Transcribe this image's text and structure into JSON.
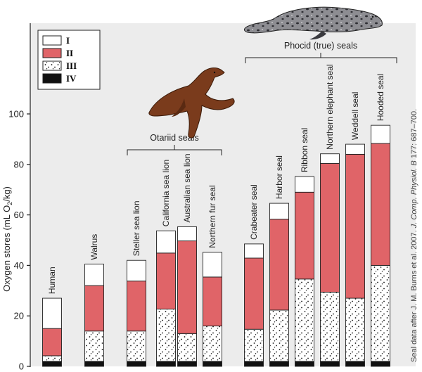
{
  "chart_data": {
    "type": "bar",
    "stacked": true,
    "categories": [
      "Human",
      "Walrus",
      "Steller sea lion",
      "California sea lion",
      "Australian sea lion",
      "Northern fur seal",
      "Crabeater seal",
      "Harbor seal",
      "Ribbon seal",
      "Northern elephant seal",
      "Weddell seal",
      "Hooded seal"
    ],
    "series": [
      {
        "name": "IV",
        "color": "#111111",
        "pattern": "solid",
        "values": [
          2,
          2,
          2,
          2,
          2,
          2,
          2,
          2,
          2,
          2,
          2,
          2
        ]
      },
      {
        "name": "III",
        "color": "#ffffff",
        "pattern": "stipple",
        "values": [
          2.2,
          12,
          12,
          20.7,
          11,
          14,
          12.7,
          20.3,
          32.6,
          27.4,
          25,
          38
        ]
      },
      {
        "name": "II",
        "color": "#e06468",
        "pattern": "solid",
        "values": [
          10.8,
          18,
          19.8,
          22.2,
          36.7,
          19.4,
          28.2,
          36,
          34.4,
          51,
          57,
          48.3
        ]
      },
      {
        "name": "I",
        "color": "#ffffff",
        "pattern": "solid",
        "values": [
          12,
          8.5,
          8.2,
          8.8,
          5.6,
          9.8,
          5.6,
          6.3,
          6.2,
          3.8,
          4,
          7.2
        ]
      }
    ],
    "legend_order": [
      "I",
      "II",
      "III",
      "IV"
    ],
    "legend_position": "top-left",
    "ylabel_parts": [
      "Oxygen stores (mL O",
      "2",
      "/kg)"
    ],
    "ylim": [
      0,
      100
    ],
    "yticks": [
      0,
      20,
      40,
      60,
      80,
      100
    ],
    "groups": [
      {
        "label": "Otariid seals",
        "from": 2,
        "to": 5
      },
      {
        "label": "Phocid (true) seals",
        "from": 6,
        "to": 11
      }
    ],
    "credit_parts": [
      "Seal data after J. M. Burns et al. 2007. ",
      "J. Comp. Physiol. B",
      " 177: 687–700."
    ]
  },
  "colors": {
    "plot_background": "#ececec",
    "seal_fur": "#7a3b1c",
    "phocid_fur": "#6f6f74"
  },
  "icons": {
    "sea_lion": "sea-lion-illustration",
    "seal": "leopard-seal-illustration"
  }
}
